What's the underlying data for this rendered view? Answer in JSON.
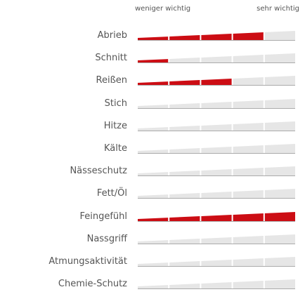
{
  "legend": {
    "min_label": "weniger wichtig",
    "max_label": "sehr wichtig"
  },
  "scale": {
    "segments": 5
  },
  "colors": {
    "filled": "#cc0d14",
    "empty": "#e6e6e6",
    "baseline": "#aaaaaa",
    "label": "#555555"
  },
  "ratings": [
    {
      "label": "Abrieb",
      "value": 4
    },
    {
      "label": "Schnitt",
      "value": 1
    },
    {
      "label": "Reißen",
      "value": 3
    },
    {
      "label": "Stich",
      "value": 0
    },
    {
      "label": "Hitze",
      "value": 0
    },
    {
      "label": "Kälte",
      "value": 0
    },
    {
      "label": "Nässeschutz",
      "value": 0
    },
    {
      "label": "Fett/Öl",
      "value": 0
    },
    {
      "label": "Feingefühl",
      "value": 5
    },
    {
      "label": "Nassgriff",
      "value": 0
    },
    {
      "label": "Atmungsaktivität",
      "value": 0
    },
    {
      "label": "Chemie-Schutz",
      "value": 0
    }
  ]
}
